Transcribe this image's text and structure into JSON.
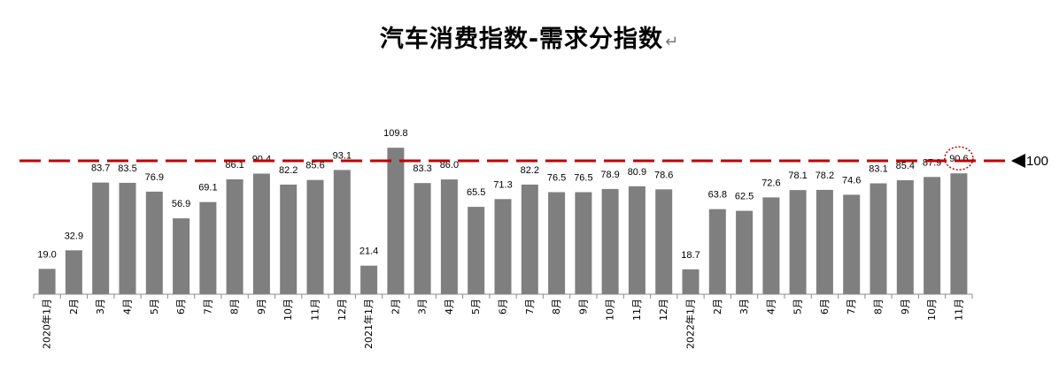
{
  "chart_data": {
    "type": "bar",
    "title": "汽车消费指数-需求分指数",
    "title_suffix": "↵",
    "categories": [
      "2020年1月",
      "2月",
      "3月",
      "4月",
      "5月",
      "6月",
      "7月",
      "8月",
      "9月",
      "10月",
      "11月",
      "12月",
      "2021年1月",
      "2月",
      "3月",
      "4月",
      "5月",
      "6月",
      "7月",
      "8月",
      "9月",
      "10月",
      "11月",
      "12月",
      "2022年1月",
      "2月",
      "3月",
      "4月",
      "5月",
      "6月",
      "7月",
      "8月",
      "9月",
      "10月",
      "11月"
    ],
    "values": [
      19.0,
      32.9,
      83.7,
      83.5,
      76.9,
      56.9,
      69.1,
      86.1,
      90.4,
      82.2,
      85.6,
      93.1,
      21.4,
      109.8,
      83.3,
      86.0,
      65.5,
      71.3,
      82.2,
      76.5,
      76.5,
      78.9,
      80.9,
      78.6,
      18.7,
      63.8,
      62.5,
      72.6,
      78.1,
      78.2,
      74.6,
      83.1,
      85.4,
      87.9,
      90.6
    ],
    "reference_line": {
      "value": 100,
      "label": "100",
      "style": "dashed",
      "color": "#c00000"
    },
    "highlighted_point": {
      "category_index": 34,
      "style": "dotted red circle"
    },
    "ylim": [
      0,
      120
    ],
    "bar_color": "#7f7f7f",
    "xlabel": "",
    "ylabel": "",
    "grid": false,
    "legend": "none"
  }
}
